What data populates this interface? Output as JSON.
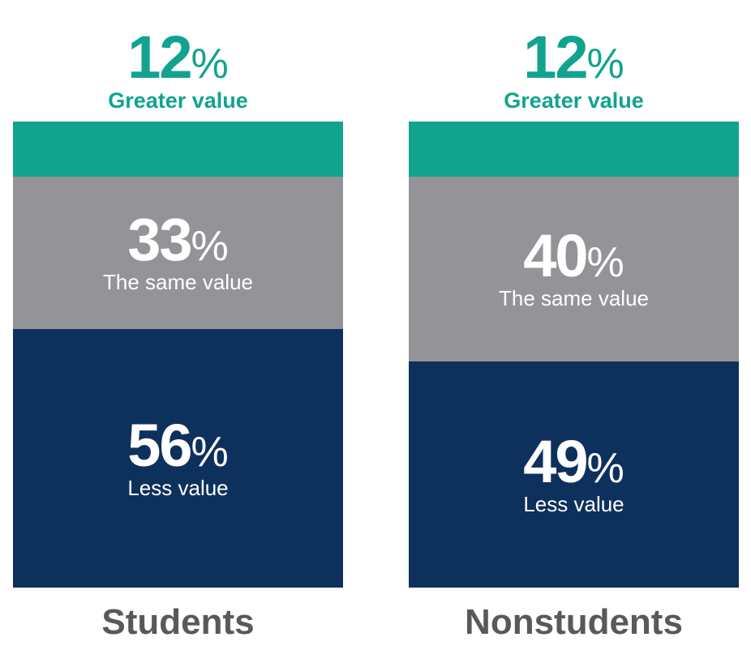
{
  "chart_data": {
    "type": "bar",
    "stacked": true,
    "percent": true,
    "categories": [
      "Students",
      "Nonstudents"
    ],
    "series": [
      {
        "name": "Greater value",
        "values": [
          12,
          12
        ],
        "color": "#12a38f"
      },
      {
        "name": "The same value",
        "values": [
          33,
          40
        ],
        "color": "#949397"
      },
      {
        "name": "Less value",
        "values": [
          56,
          49
        ],
        "color": "#0e305c"
      }
    ],
    "value_suffix": "%",
    "title": "",
    "xlabel": "",
    "ylabel": ""
  }
}
